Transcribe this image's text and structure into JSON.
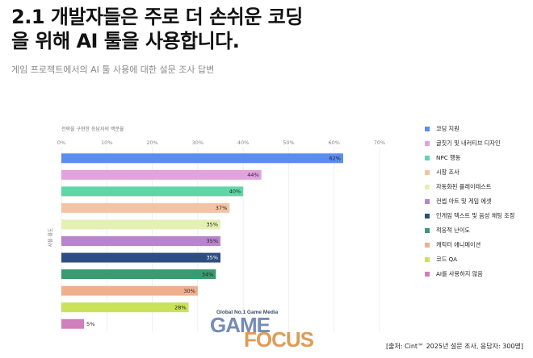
{
  "heading": {
    "line1_number": "2.1",
    "line1_text": " 개발자들은 주로 더 손쉬운 코딩",
    "line2_text": "을 위해 AI 툴을 사용합니다."
  },
  "subtitle": "게임 프로젝트에서의 AI 툴 사용에 대한 설문 조사 답변",
  "watermark": {
    "small": "Global No.1 Game Media",
    "game": "GAME",
    "focus": "FOCUS"
  },
  "source": "[출처: Cint™ 2025년 설문 조사, 응답자: 300명]",
  "chart_data": {
    "type": "bar",
    "orientation": "horizontal",
    "title": "",
    "subtitle": "전략을 구현한 응답자의 백분율",
    "xlabel": "",
    "ylabel": "사용 용도",
    "xlim": [
      0,
      70
    ],
    "xticks": [
      "0%",
      "10%",
      "20%",
      "30%",
      "40%",
      "50%",
      "60%",
      "70%"
    ],
    "grid": true,
    "legend_position": "right",
    "categories": [
      "코딩 지원",
      "글짓기 및 내러티브 디자인",
      "NPC 행동",
      "시장 조사",
      "자동화된 플레이테스트",
      "컨셉 아트 및 게임 에셋",
      "인게임 텍스트 및 음성 채팅 조정",
      "적응적 난이도",
      "캐릭터 애니메이션",
      "코드 QA",
      "AI를 사용하지 않음"
    ],
    "values": [
      62,
      44,
      40,
      37,
      35,
      35,
      35,
      34,
      30,
      28,
      5
    ],
    "value_labels": [
      "62%",
      "44%",
      "40%",
      "37%",
      "35%",
      "35%",
      "35%",
      "34%",
      "30%",
      "28%",
      "5%"
    ],
    "colors": [
      "#5b8def",
      "#e3a1de",
      "#5fd6a5",
      "#f2c4a5",
      "#e4f0b5",
      "#b884cc",
      "#2e4d80",
      "#3a9a72",
      "#f0b08e",
      "#c9e25a",
      "#cf7fbb"
    ]
  }
}
